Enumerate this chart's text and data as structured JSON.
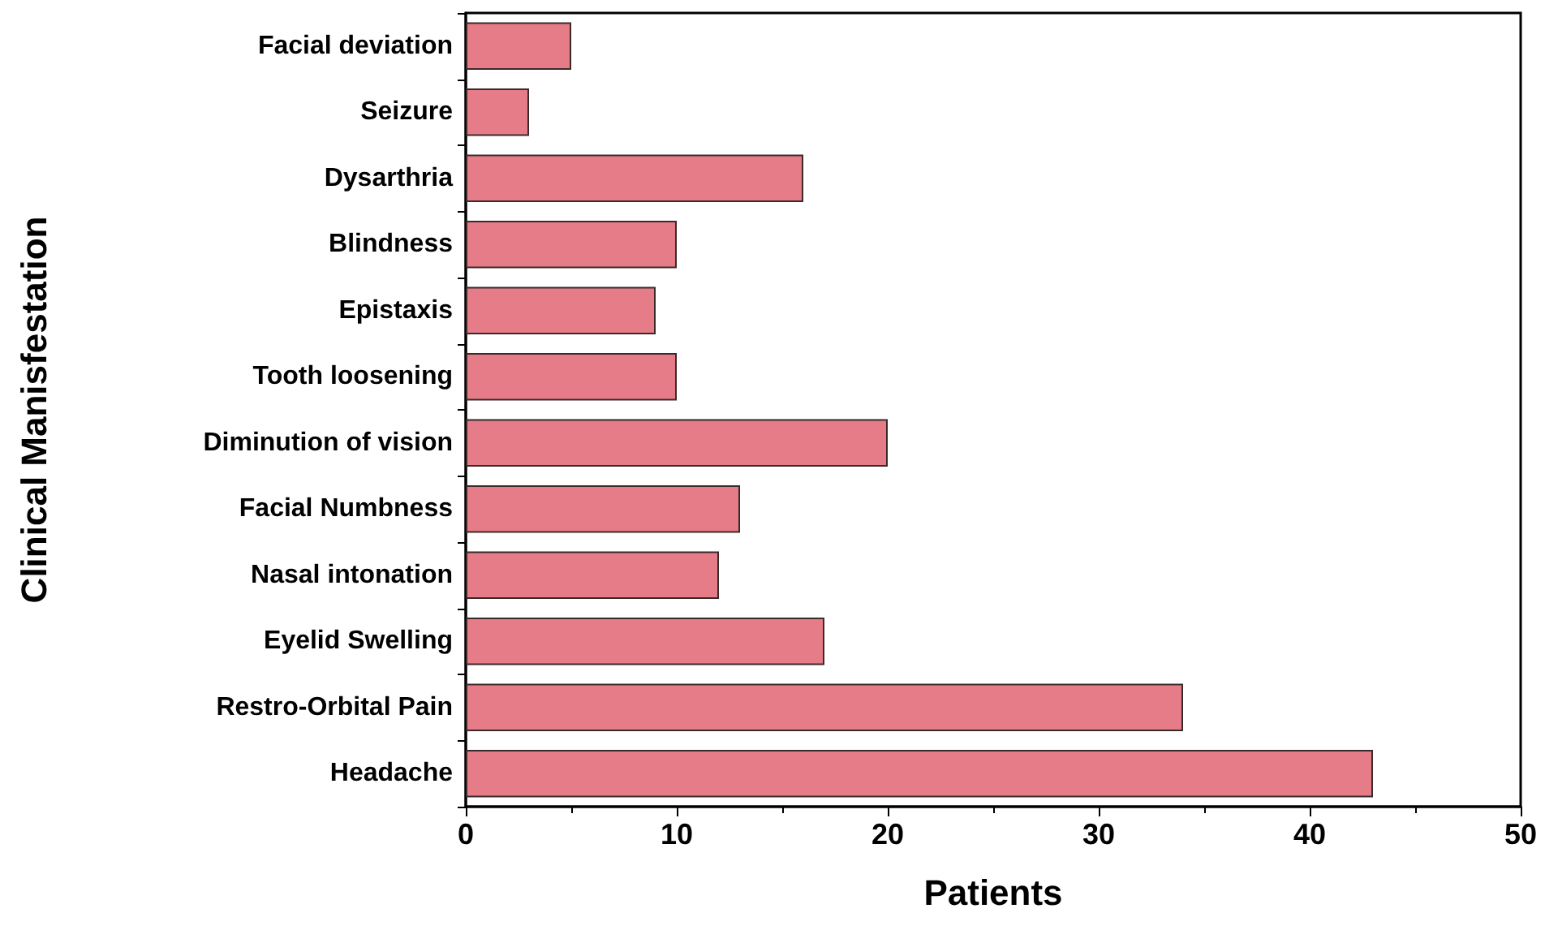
{
  "chart_data": {
    "type": "bar",
    "orientation": "horizontal",
    "xlabel": "Patients",
    "ylabel": "Clinical Manisfestation",
    "categories": [
      "Facial deviation",
      "Seizure",
      "Dysarthria",
      "Blindness",
      "Epistaxis",
      "Tooth loosening",
      "Diminution of vision",
      "Facial Numbness",
      "Nasal intonation",
      "Eyelid Swelling",
      "Restro-Orbital Pain",
      "Headache"
    ],
    "values": [
      5,
      3,
      16,
      10,
      9,
      10,
      20,
      13,
      12,
      17,
      34,
      43
    ],
    "color": "#e67c87",
    "xlim": [
      0,
      50
    ],
    "xticks": [
      0,
      10,
      20,
      30,
      40,
      50
    ],
    "grid": false
  }
}
